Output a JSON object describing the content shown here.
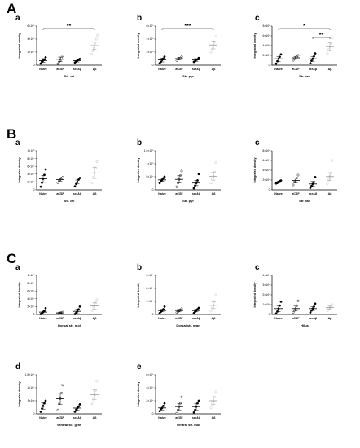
{
  "figure": {
    "sections": [
      "A",
      "B",
      "C"
    ]
  },
  "chart_data": [
    {
      "id": "A-a",
      "section": "A",
      "letter": "a",
      "type": "scatter",
      "xlabel": "Str. ori",
      "ylabel": "Integrated density",
      "categories": [
        "Naive",
        "aCSF",
        "scrAβ",
        "Aβ"
      ],
      "ylim": [
        0,
        6
      ],
      "yticks": [
        "0",
        "2×10⁶",
        "4×10⁶",
        "6×10⁶"
      ],
      "series": [
        {
          "values": [
            0.7,
            0.9,
            0.7,
            3.0
          ],
          "error": [
            0.3,
            0.35,
            0.2,
            0.6
          ],
          "points": [
            [
              0.25,
              0.55,
              0.7,
              0.85,
              1.2
            ],
            [
              0.2,
              0.5,
              0.7,
              1.1,
              1.4
            ],
            [
              0.4,
              0.55,
              0.7,
              0.85,
              0.95
            ],
            [
              1.7,
              2.2,
              2.6,
              3.4,
              4.0,
              4.6
            ]
          ]
        }
      ],
      "significance": [
        {
          "from": 0,
          "to": 3,
          "label": "**"
        }
      ]
    },
    {
      "id": "A-b",
      "section": "A",
      "letter": "b",
      "type": "scatter",
      "xlabel": "Str. pyr",
      "ylabel": "Integrated density",
      "categories": [
        "Naive",
        "aCSF",
        "scrAβ",
        "Aβ"
      ],
      "ylim": [
        0,
        6
      ],
      "yticks": [
        "0",
        "2×10⁶",
        "4×10⁶",
        "6×10⁶"
      ],
      "series": [
        {
          "values": [
            0.8,
            1.0,
            0.8,
            3.1
          ],
          "error": [
            0.3,
            0.2,
            0.2,
            0.6
          ],
          "points": [
            [
              0.3,
              0.5,
              0.8,
              1.0,
              1.3
            ],
            [
              0.7,
              0.9,
              1.0,
              1.1,
              1.3
            ],
            [
              0.5,
              0.6,
              0.8,
              0.9,
              1.1
            ],
            [
              2.0,
              2.5,
              3.0,
              3.6,
              4.4
            ]
          ]
        }
      ],
      "significance": [
        {
          "from": 0,
          "to": 3,
          "label": "***"
        }
      ]
    },
    {
      "id": "A-c",
      "section": "A",
      "letter": "c",
      "type": "scatter",
      "xlabel": "Str. rad",
      "ylabel": "Integrated density",
      "categories": [
        "Naive",
        "aCSF",
        "scrAβ",
        "Aβ"
      ],
      "ylim": [
        0,
        8
      ],
      "yticks": [
        "0",
        "2×10⁶",
        "4×10⁶",
        "6×10⁶",
        "8×10⁶"
      ],
      "series": [
        {
          "values": [
            1.3,
            1.5,
            1.3,
            3.8
          ],
          "error": [
            0.5,
            0.3,
            0.5,
            0.8
          ],
          "points": [
            [
              0.3,
              0.8,
              1.3,
              1.7,
              2.2
            ],
            [
              1.0,
              1.3,
              1.5,
              1.7,
              2.0
            ],
            [
              0.4,
              0.9,
              1.3,
              1.8,
              2.4
            ],
            [
              2.4,
              3.2,
              3.8,
              4.4,
              5.6
            ]
          ]
        }
      ],
      "significance": [
        {
          "from": 0,
          "to": 3,
          "label": "*"
        },
        {
          "from": 2,
          "to": 3,
          "label": "**"
        }
      ]
    },
    {
      "id": "B-a",
      "section": "B",
      "letter": "a",
      "type": "scatter",
      "xlabel": "Str. ori",
      "ylabel": "Integrated density",
      "categories": [
        "Naive",
        "aCSF",
        "scrAβ",
        "Aβ"
      ],
      "ylim": [
        0,
        10
      ],
      "yticks": [
        "0",
        "2×10⁴",
        "4×10⁴",
        "6×10⁴",
        "8×10⁴",
        "1×10⁵"
      ],
      "series": [
        {
          "values": [
            2.8,
            2.6,
            2.0,
            4.3
          ],
          "error": [
            0.9,
            0.4,
            0.5,
            1.4
          ],
          "points": [
            [
              0.8,
              1.8,
              2.8,
              3.8,
              5.2
            ],
            [
              1.8,
              2.3,
              2.6,
              3.0,
              3.2
            ],
            [
              0.9,
              1.5,
              2.0,
              2.6,
              3.0
            ],
            [
              1.8,
              3.2,
              4.3,
              5.6,
              7.2
            ]
          ]
        }
      ],
      "significance": []
    },
    {
      "id": "B-b",
      "section": "B",
      "letter": "b",
      "type": "scatter",
      "xlabel": "Str. pyr",
      "ylabel": "Integrated density",
      "categories": [
        "Naive",
        "aCSF",
        "scrAβ",
        "Aβ"
      ],
      "ylim": [
        0,
        15
      ],
      "yticks": [
        "0",
        "5×10⁴",
        "1×10⁵",
        "1.5×10⁵"
      ],
      "series": [
        {
          "values": [
            3.8,
            4.0,
            2.6,
            5.2
          ],
          "error": [
            0.6,
            1.4,
            1.0,
            1.5
          ],
          "points": [
            [
              2.6,
              3.3,
              3.8,
              4.4,
              5.0
            ],
            [
              1.2,
              2.6,
              4.0,
              5.5,
              7.2
            ],
            [
              0.6,
              1.6,
              2.6,
              3.6,
              6.0
            ],
            [
              2.6,
              4.0,
              5.2,
              6.8,
              10.5
            ]
          ]
        }
      ],
      "significance": []
    },
    {
      "id": "B-c",
      "section": "B",
      "letter": "c",
      "type": "scatter",
      "xlabel": "Str. rad",
      "ylabel": "Integrated density",
      "categories": [
        "Naive",
        "aCSF",
        "scrAβ",
        "Aβ"
      ],
      "ylim": [
        0,
        8
      ],
      "yticks": [
        "0",
        "2×10⁴",
        "4×10⁴",
        "6×10⁴",
        "8×10⁴"
      ],
      "series": [
        {
          "values": [
            1.6,
            1.9,
            1.2,
            2.7
          ],
          "error": [
            0.2,
            0.5,
            0.5,
            0.8
          ],
          "points": [
            [
              1.3,
              1.4,
              1.6,
              1.8,
              1.9
            ],
            [
              1.0,
              1.6,
              1.9,
              2.4,
              3.0
            ],
            [
              0.4,
              0.8,
              1.2,
              1.6,
              2.6
            ],
            [
              1.2,
              2.0,
              2.7,
              3.4,
              6.0
            ]
          ]
        }
      ],
      "significance": []
    },
    {
      "id": "C-a",
      "section": "C",
      "letter": "a",
      "type": "scatter",
      "xlabel": "Dorsal str. mol",
      "ylabel": "Integrated density",
      "categories": [
        "Naive",
        "aCSF",
        "scrAβ",
        "Aβ"
      ],
      "ylim": [
        0,
        10
      ],
      "yticks": [
        "0",
        "2×10⁴",
        "4×10⁴",
        "6×10⁴",
        "8×10⁴",
        "1×10⁵"
      ],
      "series": [
        {
          "values": [
            0.6,
            0.4,
            0.8,
            2.2
          ],
          "error": [
            0.5,
            0.2,
            0.6,
            0.8
          ],
          "points": [
            [
              0.1,
              0.3,
              0.6,
              0.9,
              1.6
            ],
            [
              0.2,
              0.3,
              0.4,
              0.5,
              0.6
            ],
            [
              0.1,
              0.4,
              0.8,
              1.3,
              2.0
            ],
            [
              1.0,
              1.8,
              2.2,
              3.0,
              3.8
            ]
          ]
        }
      ],
      "significance": []
    },
    {
      "id": "C-b",
      "section": "C",
      "letter": "b",
      "type": "scatter",
      "xlabel": "Dorsal str. gran",
      "ylabel": "Integrated density",
      "categories": [
        "Naive",
        "aCSF",
        "scrAβ",
        "Aβ"
      ],
      "ylim": [
        0,
        3
      ],
      "yticks": [
        "0",
        "1×10⁴",
        "2×10⁴",
        "3×10⁴"
      ],
      "series": [
        {
          "values": [
            0.3,
            0.3,
            0.3,
            0.7
          ],
          "error": [
            0.1,
            0.1,
            0.1,
            0.25
          ],
          "points": [
            [
              0.1,
              0.2,
              0.3,
              0.4,
              0.6
            ],
            [
              0.15,
              0.2,
              0.3,
              0.35,
              0.45
            ],
            [
              0.1,
              0.2,
              0.3,
              0.4,
              0.5
            ],
            [
              0.3,
              0.5,
              0.7,
              1.0,
              1.5
            ]
          ]
        }
      ],
      "significance": []
    },
    {
      "id": "C-c",
      "section": "C",
      "letter": "c",
      "type": "scatter",
      "xlabel": "Hilus",
      "ylabel": "Integrated density",
      "categories": [
        "Naive",
        "aCSF",
        "scrAβ",
        "Aβ"
      ],
      "ylim": [
        0,
        4
      ],
      "yticks": [
        "0",
        "1×10⁴",
        "2×10⁴",
        "3×10⁴",
        "4×10⁴"
      ],
      "series": [
        {
          "values": [
            0.6,
            0.6,
            0.6,
            0.7
          ],
          "error": [
            0.3,
            0.25,
            0.2,
            0.15
          ],
          "points": [
            [
              0.1,
              0.3,
              0.6,
              0.9,
              1.3
            ],
            [
              0.2,
              0.4,
              0.6,
              0.9,
              1.4
            ],
            [
              0.2,
              0.4,
              0.6,
              0.8,
              1.1
            ],
            [
              0.4,
              0.6,
              0.7,
              0.8,
              1.0
            ]
          ]
        }
      ],
      "significance": []
    },
    {
      "id": "C-d",
      "section": "C",
      "letter": "d",
      "type": "scatter",
      "xlabel": "Ventral str. gran",
      "ylabel": "Integrated density",
      "categories": [
        "Naive",
        "aCSF",
        "scrAβ",
        "Aβ"
      ],
      "ylim": [
        0,
        15
      ],
      "yticks": [
        "0",
        "5×10³",
        "1×10⁴",
        "1.5×10⁴"
      ],
      "series": [
        {
          "values": [
            3.0,
            5.8,
            2.2,
            7.3
          ],
          "error": [
            1.2,
            2.2,
            0.8,
            1.8
          ],
          "points": [
            [
              0.8,
              2.0,
              3.0,
              4.0,
              5.0
            ],
            [
              1.5,
              3.8,
              5.8,
              8.0,
              11.0
            ],
            [
              0.8,
              1.6,
              2.2,
              2.8,
              3.6
            ],
            [
              3.8,
              5.6,
              7.3,
              9.0,
              12.5
            ]
          ]
        }
      ],
      "significance": []
    },
    {
      "id": "C-e",
      "section": "C",
      "letter": "e",
      "type": "scatter",
      "xlabel": "Ventral str. mol",
      "ylabel": "Integrated density",
      "categories": [
        "Naive",
        "aCSF",
        "scrAβ",
        "Aβ"
      ],
      "ylim": [
        0,
        6
      ],
      "yticks": [
        "0",
        "2×10⁴",
        "4×10⁴",
        "6×10⁴"
      ],
      "series": [
        {
          "values": [
            0.9,
            1.1,
            1.1,
            2.0
          ],
          "error": [
            0.3,
            0.5,
            0.5,
            0.6
          ],
          "points": [
            [
              0.4,
              0.7,
              0.9,
              1.2,
              1.6
            ],
            [
              0.1,
              0.6,
              1.1,
              1.6,
              2.6
            ],
            [
              0.2,
              0.6,
              1.1,
              1.6,
              2.0
            ],
            [
              0.9,
              1.5,
              2.0,
              2.6,
              3.4
            ]
          ]
        }
      ],
      "significance": []
    }
  ]
}
